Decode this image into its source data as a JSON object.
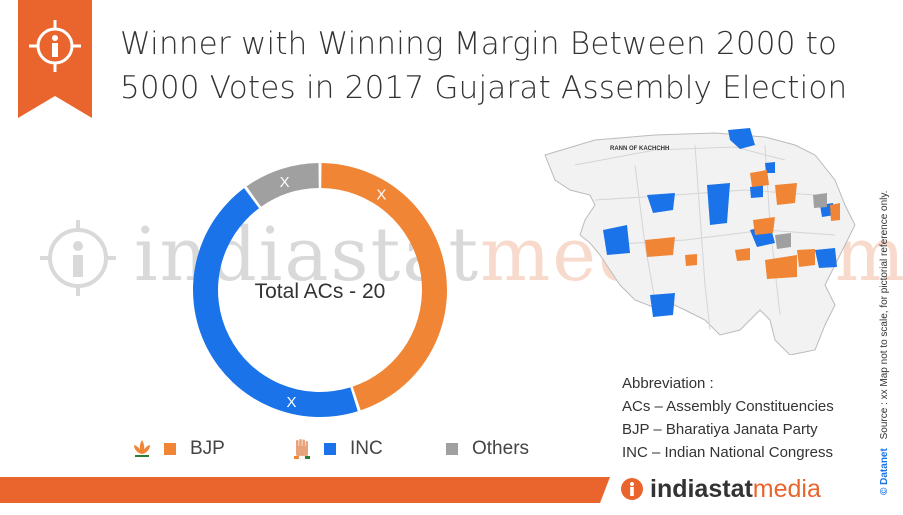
{
  "title": {
    "line1": "Winner with Winning Margin Between 2000 to",
    "line2": "5000 Votes in 2017 Gujarat Assembly Election"
  },
  "icons": {
    "info": "info-icon",
    "bjp_symbol": "lotus-icon",
    "inc_symbol": "hand-icon"
  },
  "colors": {
    "bjp": "#ef8535",
    "inc": "#1a73e8",
    "others": "#a0a0a0",
    "brand_orange": "#e9652d"
  },
  "chart_data": {
    "type": "pie",
    "center_label": "Total ACs - 20",
    "series": [
      {
        "name": "BJP",
        "value": 9,
        "label": "X"
      },
      {
        "name": "INC",
        "value": 9,
        "label": "X"
      },
      {
        "name": "Others",
        "value": 2,
        "label": "X"
      }
    ],
    "legend": [
      "BJP",
      "INC",
      "Others"
    ],
    "legend_position": "bottom"
  },
  "map": {
    "label": "RANN OF KACHCHH"
  },
  "abbreviations": {
    "heading": "Abbreviation :",
    "items": [
      "ACs – Assembly Constituencies",
      "BJP – Bharatiya Janata Party",
      "INC – Indian National Congress"
    ]
  },
  "source": {
    "brand": "© Datanet",
    "text": "Source : xx Map not to scale, for pictorial reference only."
  },
  "watermark": {
    "part1": "indiastat",
    "part2": "media.com"
  },
  "footer": {
    "brand_part1": "indiastat",
    "brand_part2": "media"
  }
}
